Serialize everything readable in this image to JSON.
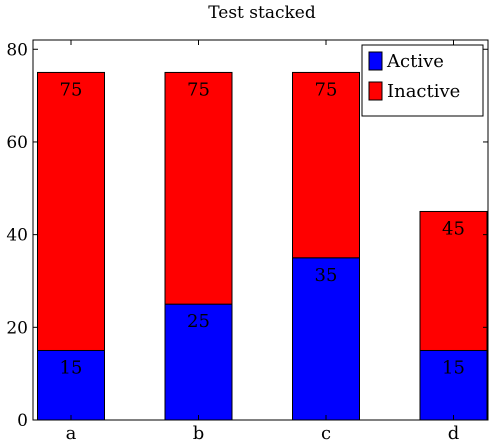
{
  "chart_data": {
    "type": "bar",
    "stacked": true,
    "title": "Test stacked",
    "xlabel": "",
    "ylabel": "",
    "categories": [
      "a",
      "b",
      "c",
      "d"
    ],
    "series": [
      {
        "name": "Active",
        "color": "#0000ff",
        "values": [
          15,
          25,
          35,
          15
        ]
      },
      {
        "name": "Inactive",
        "color": "#ff0000",
        "values": [
          60,
          50,
          40,
          30
        ]
      }
    ],
    "totals": [
      75,
      75,
      75,
      45
    ],
    "ylim": [
      0,
      82
    ],
    "yticks": [
      0,
      20,
      40,
      60,
      80
    ],
    "grid": false,
    "legend_position": "top-right"
  }
}
